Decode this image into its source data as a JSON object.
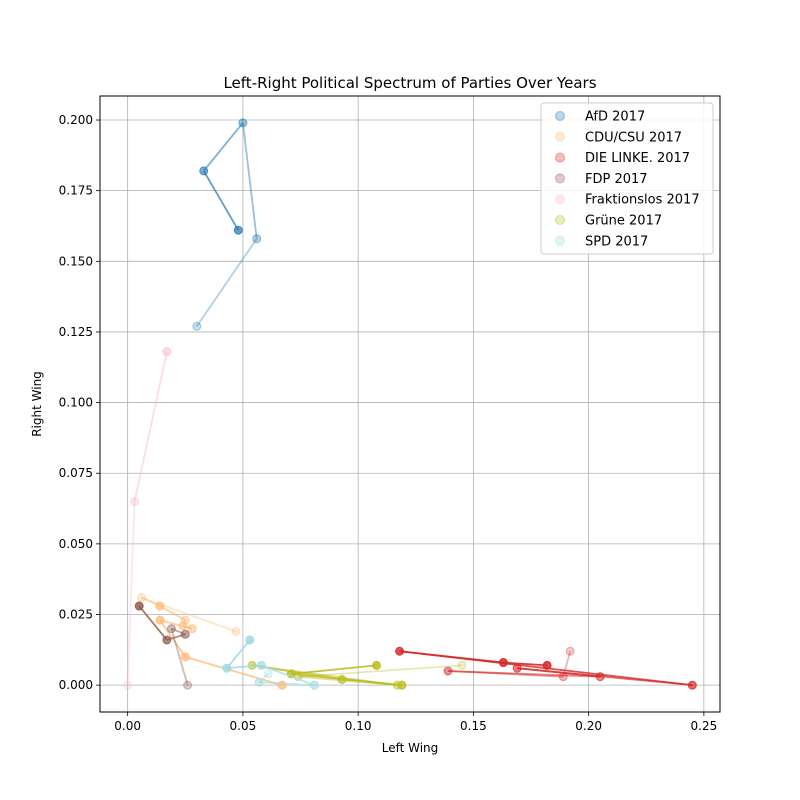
{
  "chart_data": {
    "type": "scatter",
    "title": "Left-Right Political Spectrum of Parties Over Years",
    "xlabel": "Left Wing",
    "ylabel": "Right Wing",
    "xlim": [
      -0.012,
      0.257
    ],
    "ylim": [
      -0.0095,
      0.2085
    ],
    "xticks": [
      0.0,
      0.05,
      0.1,
      0.15,
      0.2,
      0.25
    ],
    "yticks": [
      0.0,
      0.025,
      0.05,
      0.075,
      0.1,
      0.125,
      0.15,
      0.175,
      0.2
    ],
    "xtick_labels": [
      "0.00",
      "0.05",
      "0.10",
      "0.15",
      "0.20",
      "0.25"
    ],
    "ytick_labels": [
      "0.000",
      "0.025",
      "0.050",
      "0.075",
      "0.100",
      "0.125",
      "0.150",
      "0.175",
      "0.200"
    ],
    "grid": true,
    "legend_position": "top-right",
    "series": [
      {
        "name": "AfD 2017",
        "color": "#1f77b4",
        "points": [
          [
            0.03,
            0.127
          ],
          [
            0.056,
            0.158
          ],
          [
            0.05,
            0.199
          ],
          [
            0.033,
            0.182
          ],
          [
            0.048,
            0.161
          ]
        ],
        "alphas": [
          0.25,
          0.35,
          0.45,
          0.6,
          0.7
        ]
      },
      {
        "name": "CDU/CSU 2017",
        "color": "#ffbb78",
        "points": [
          [
            0.047,
            0.019
          ],
          [
            0.006,
            0.031
          ],
          [
            0.014,
            0.028
          ],
          [
            0.025,
            0.023
          ],
          [
            0.024,
            0.021
          ],
          [
            0.028,
            0.02
          ],
          [
            0.014,
            0.023
          ],
          [
            0.025,
            0.01
          ],
          [
            0.067,
            0.0
          ]
        ],
        "alphas": [
          0.3,
          0.35,
          0.75,
          0.45,
          0.55,
          0.55,
          0.75,
          0.75,
          0.75
        ]
      },
      {
        "name": "DIE LINKE. 2017",
        "color": "#d62728",
        "points": [
          [
            0.192,
            0.012
          ],
          [
            0.189,
            0.003
          ],
          [
            0.139,
            0.005
          ],
          [
            0.205,
            0.003
          ],
          [
            0.169,
            0.006
          ],
          [
            0.245,
            0.0
          ],
          [
            0.118,
            0.012
          ],
          [
            0.163,
            0.008
          ],
          [
            0.182,
            0.007
          ]
        ],
        "alphas": [
          0.25,
          0.35,
          0.5,
          0.55,
          0.6,
          0.7,
          0.8,
          0.85,
          0.85
        ]
      },
      {
        "name": "FDP 2017",
        "color": "#8c564b",
        "points": [
          [
            0.026,
            0.0
          ],
          [
            0.019,
            0.02
          ],
          [
            0.025,
            0.018
          ],
          [
            0.017,
            0.016
          ],
          [
            0.005,
            0.028
          ]
        ],
        "alphas": [
          0.3,
          0.4,
          0.55,
          0.7,
          0.8
        ]
      },
      {
        "name": "Fraktionslos 2017",
        "color": "#f7b6d2",
        "points": [
          [
            0.0,
            0.0
          ],
          [
            0.003,
            0.065
          ],
          [
            0.017,
            0.118
          ]
        ],
        "alphas": [
          0.25,
          0.35,
          0.5
        ]
      },
      {
        "name": "Grüne 2017",
        "color": "#bcbd22",
        "points": [
          [
            0.145,
            0.007
          ],
          [
            0.074,
            0.003
          ],
          [
            0.117,
            0.0
          ],
          [
            0.054,
            0.007
          ],
          [
            0.093,
            0.002
          ],
          [
            0.119,
            0.0
          ],
          [
            0.071,
            0.004
          ],
          [
            0.108,
            0.007
          ]
        ],
        "alphas": [
          0.25,
          0.35,
          0.5,
          0.55,
          0.7,
          0.8,
          0.85,
          0.85
        ]
      },
      {
        "name": "SPD 2017",
        "color": "#9edae5",
        "points": [
          [
            0.061,
            0.004
          ],
          [
            0.057,
            0.001
          ],
          [
            0.081,
            0.0
          ],
          [
            0.058,
            0.007
          ],
          [
            0.043,
            0.006
          ],
          [
            0.053,
            0.016
          ]
        ],
        "alphas": [
          0.3,
          0.5,
          0.6,
          0.7,
          0.8,
          0.85
        ]
      }
    ]
  }
}
